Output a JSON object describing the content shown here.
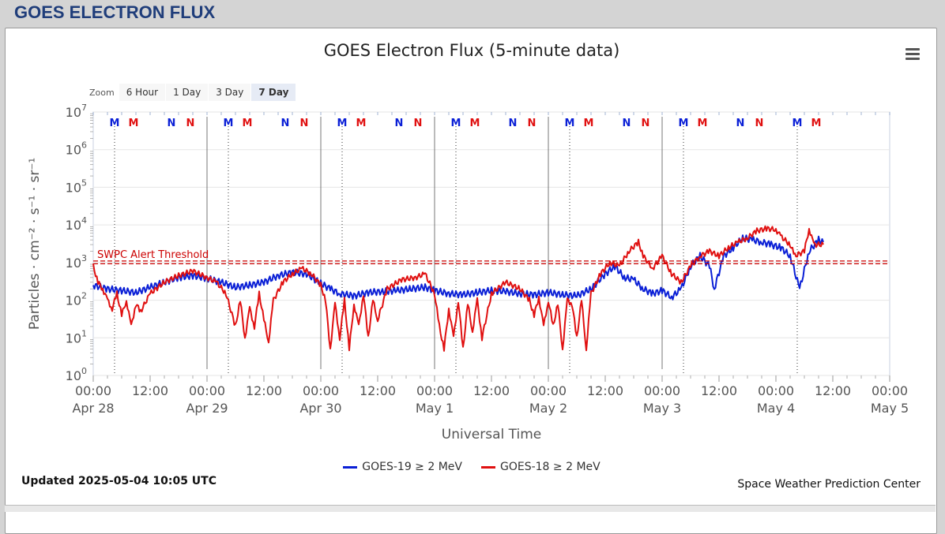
{
  "header": {
    "title": "GOES ELECTRON FLUX"
  },
  "zoom": {
    "label": "Zoom",
    "buttons": [
      "6 Hour",
      "1 Day",
      "3 Day",
      "7 Day"
    ],
    "active": "7 Day"
  },
  "updated": "Updated 2025-05-04 10:05 UTC",
  "credit": "Space Weather Prediction Center",
  "colors": {
    "goes19": "#0a1fd6",
    "goes18": "#e01010",
    "threshold": "#cc0000",
    "accent": "#1f3d7a"
  },
  "chart_data": {
    "type": "line",
    "title": "GOES Electron Flux (5-minute data)",
    "xlabel": "Universal Time",
    "ylabel": "Particles · cm⁻² · s⁻¹ · sr⁻¹",
    "yscale": "log",
    "ylim": [
      1,
      10000000
    ],
    "y_ticks": [
      {
        "base": "10",
        "exp": "0"
      },
      {
        "base": "10",
        "exp": "1"
      },
      {
        "base": "10",
        "exp": "2"
      },
      {
        "base": "10",
        "exp": "3"
      },
      {
        "base": "10",
        "exp": "4"
      },
      {
        "base": "10",
        "exp": "5"
      },
      {
        "base": "10",
        "exp": "6"
      },
      {
        "base": "10",
        "exp": "7"
      }
    ],
    "xlim_hours": [
      0,
      168
    ],
    "x_ticks": [
      {
        "t": 0,
        "time": "00:00",
        "date": "Apr 28"
      },
      {
        "t": 12,
        "time": "12:00",
        "date": ""
      },
      {
        "t": 24,
        "time": "00:00",
        "date": "Apr 29"
      },
      {
        "t": 36,
        "time": "12:00",
        "date": ""
      },
      {
        "t": 48,
        "time": "00:00",
        "date": "Apr 30"
      },
      {
        "t": 60,
        "time": "12:00",
        "date": ""
      },
      {
        "t": 72,
        "time": "00:00",
        "date": "May 1"
      },
      {
        "t": 84,
        "time": "12:00",
        "date": ""
      },
      {
        "t": 96,
        "time": "00:00",
        "date": "May 2"
      },
      {
        "t": 108,
        "time": "12:00",
        "date": ""
      },
      {
        "t": 120,
        "time": "00:00",
        "date": "May 3"
      },
      {
        "t": 132,
        "time": "12:00",
        "date": ""
      },
      {
        "t": 144,
        "time": "00:00",
        "date": "May 4"
      },
      {
        "t": 156,
        "time": "12:00",
        "date": ""
      },
      {
        "t": 168,
        "time": "00:00",
        "date": "May 5"
      }
    ],
    "threshold": {
      "label": "SWPC Alert Threshold",
      "value": 1000
    },
    "midnight_lines_hours": [
      24,
      48,
      72,
      96,
      120
    ],
    "noon_markers": [
      {
        "t": 4.5,
        "label": "M",
        "color": "#0a1fd6"
      },
      {
        "t": 8.5,
        "label": "M",
        "color": "#e01010"
      },
      {
        "t": 16.5,
        "label": "N",
        "color": "#0a1fd6"
      },
      {
        "t": 20.5,
        "label": "N",
        "color": "#e01010"
      },
      {
        "t": 28.5,
        "label": "M",
        "color": "#0a1fd6"
      },
      {
        "t": 32.5,
        "label": "M",
        "color": "#e01010"
      },
      {
        "t": 40.5,
        "label": "N",
        "color": "#0a1fd6"
      },
      {
        "t": 44.5,
        "label": "N",
        "color": "#e01010"
      },
      {
        "t": 52.5,
        "label": "M",
        "color": "#0a1fd6"
      },
      {
        "t": 56.5,
        "label": "M",
        "color": "#e01010"
      },
      {
        "t": 64.5,
        "label": "N",
        "color": "#0a1fd6"
      },
      {
        "t": 68.5,
        "label": "N",
        "color": "#e01010"
      },
      {
        "t": 76.5,
        "label": "M",
        "color": "#0a1fd6"
      },
      {
        "t": 80.5,
        "label": "M",
        "color": "#e01010"
      },
      {
        "t": 88.5,
        "label": "N",
        "color": "#0a1fd6"
      },
      {
        "t": 92.5,
        "label": "N",
        "color": "#e01010"
      },
      {
        "t": 100.5,
        "label": "M",
        "color": "#0a1fd6"
      },
      {
        "t": 104.5,
        "label": "M",
        "color": "#e01010"
      },
      {
        "t": 112.5,
        "label": "N",
        "color": "#0a1fd6"
      },
      {
        "t": 116.5,
        "label": "N",
        "color": "#e01010"
      },
      {
        "t": 124.5,
        "label": "M",
        "color": "#0a1fd6"
      },
      {
        "t": 128.5,
        "label": "M",
        "color": "#e01010"
      },
      {
        "t": 136.5,
        "label": "N",
        "color": "#0a1fd6"
      },
      {
        "t": 140.5,
        "label": "N",
        "color": "#e01010"
      },
      {
        "t": 148.5,
        "label": "M",
        "color": "#0a1fd6"
      },
      {
        "t": 152.5,
        "label": "M",
        "color": "#e01010"
      }
    ],
    "dotted_lines_hours": [
      4.5,
      28.5,
      52.5,
      76.5,
      100.5,
      124.5,
      148.5
    ],
    "series": [
      {
        "name": "GOES-19 ≥ 2 MeV",
        "color": "#0a1fd6",
        "points": [
          [
            0,
            250
          ],
          [
            3,
            200
          ],
          [
            6,
            180
          ],
          [
            9,
            160
          ],
          [
            12,
            220
          ],
          [
            15,
            300
          ],
          [
            18,
            400
          ],
          [
            21,
            450
          ],
          [
            24,
            380
          ],
          [
            27,
            300
          ],
          [
            30,
            220
          ],
          [
            33,
            250
          ],
          [
            36,
            300
          ],
          [
            39,
            450
          ],
          [
            42,
            550
          ],
          [
            45,
            500
          ],
          [
            48,
            280
          ],
          [
            50,
            200
          ],
          [
            52,
            150
          ],
          [
            55,
            130
          ],
          [
            58,
            160
          ],
          [
            61,
            170
          ],
          [
            64,
            180
          ],
          [
            67,
            200
          ],
          [
            70,
            220
          ],
          [
            72,
            180
          ],
          [
            75,
            150
          ],
          [
            78,
            140
          ],
          [
            81,
            160
          ],
          [
            84,
            180
          ],
          [
            87,
            170
          ],
          [
            90,
            150
          ],
          [
            93,
            140
          ],
          [
            96,
            160
          ],
          [
            99,
            140
          ],
          [
            102,
            130
          ],
          [
            105,
            200
          ],
          [
            108,
            500
          ],
          [
            110,
            800
          ],
          [
            112,
            400
          ],
          [
            114,
            350
          ],
          [
            116,
            200
          ],
          [
            118,
            150
          ],
          [
            120,
            180
          ],
          [
            122,
            120
          ],
          [
            124,
            200
          ],
          [
            126,
            800
          ],
          [
            128,
            1500
          ],
          [
            130,
            800
          ],
          [
            131,
            200
          ],
          [
            133,
            1500
          ],
          [
            135,
            2500
          ],
          [
            137,
            4500
          ],
          [
            139,
            4000
          ],
          [
            141,
            3500
          ],
          [
            143,
            3000
          ],
          [
            145,
            2500
          ],
          [
            147,
            1500
          ],
          [
            149,
            200
          ],
          [
            151,
            2000
          ],
          [
            153,
            4000
          ],
          [
            154,
            3500
          ]
        ]
      },
      {
        "name": "GOES-18 ≥ 2 MeV",
        "color": "#e01010",
        "points": [
          [
            0,
            800
          ],
          [
            1,
            300
          ],
          [
            2,
            200
          ],
          [
            3,
            100
          ],
          [
            4,
            60
          ],
          [
            5,
            150
          ],
          [
            6,
            40
          ],
          [
            7,
            100
          ],
          [
            8,
            20
          ],
          [
            9,
            80
          ],
          [
            10,
            50
          ],
          [
            12,
            150
          ],
          [
            15,
            300
          ],
          [
            18,
            450
          ],
          [
            21,
            600
          ],
          [
            24,
            400
          ],
          [
            26,
            300
          ],
          [
            28,
            150
          ],
          [
            30,
            20
          ],
          [
            31,
            100
          ],
          [
            32,
            10
          ],
          [
            33,
            60
          ],
          [
            34,
            20
          ],
          [
            35,
            150
          ],
          [
            36,
            30
          ],
          [
            37,
            8
          ],
          [
            38,
            100
          ],
          [
            40,
            300
          ],
          [
            42,
            500
          ],
          [
            44,
            700
          ],
          [
            46,
            500
          ],
          [
            48,
            250
          ],
          [
            49,
            100
          ],
          [
            50,
            5
          ],
          [
            51,
            80
          ],
          [
            52,
            10
          ],
          [
            53,
            100
          ],
          [
            54,
            5
          ],
          [
            55,
            80
          ],
          [
            56,
            20
          ],
          [
            57,
            150
          ],
          [
            58,
            10
          ],
          [
            59,
            100
          ],
          [
            60,
            30
          ],
          [
            62,
            200
          ],
          [
            65,
            350
          ],
          [
            68,
            400
          ],
          [
            70,
            500
          ],
          [
            72,
            150
          ],
          [
            73,
            20
          ],
          [
            74,
            5
          ],
          [
            75,
            60
          ],
          [
            76,
            10
          ],
          [
            77,
            100
          ],
          [
            78,
            5
          ],
          [
            79,
            80
          ],
          [
            80,
            15
          ],
          [
            81,
            100
          ],
          [
            82,
            10
          ],
          [
            84,
            150
          ],
          [
            87,
            300
          ],
          [
            90,
            200
          ],
          [
            92,
            100
          ],
          [
            93,
            40
          ],
          [
            94,
            120
          ],
          [
            95,
            20
          ],
          [
            96,
            100
          ],
          [
            97,
            20
          ],
          [
            98,
            80
          ],
          [
            99,
            5
          ],
          [
            100,
            100
          ],
          [
            101,
            80
          ],
          [
            102,
            10
          ],
          [
            103,
            100
          ],
          [
            104,
            5
          ],
          [
            105,
            150
          ],
          [
            107,
            500
          ],
          [
            109,
            1000
          ],
          [
            111,
            800
          ],
          [
            113,
            2000
          ],
          [
            115,
            3500
          ],
          [
            116,
            1500
          ],
          [
            118,
            700
          ],
          [
            120,
            1500
          ],
          [
            122,
            500
          ],
          [
            124,
            300
          ],
          [
            126,
            800
          ],
          [
            128,
            1500
          ],
          [
            130,
            2000
          ],
          [
            132,
            1500
          ],
          [
            134,
            2500
          ],
          [
            136,
            3500
          ],
          [
            138,
            4500
          ],
          [
            140,
            7000
          ],
          [
            142,
            8000
          ],
          [
            144,
            7500
          ],
          [
            145,
            5000
          ],
          [
            147,
            3000
          ],
          [
            148,
            1500
          ],
          [
            150,
            2000
          ],
          [
            151,
            8000
          ],
          [
            152,
            3000
          ],
          [
            154,
            3000
          ]
        ]
      }
    ]
  }
}
